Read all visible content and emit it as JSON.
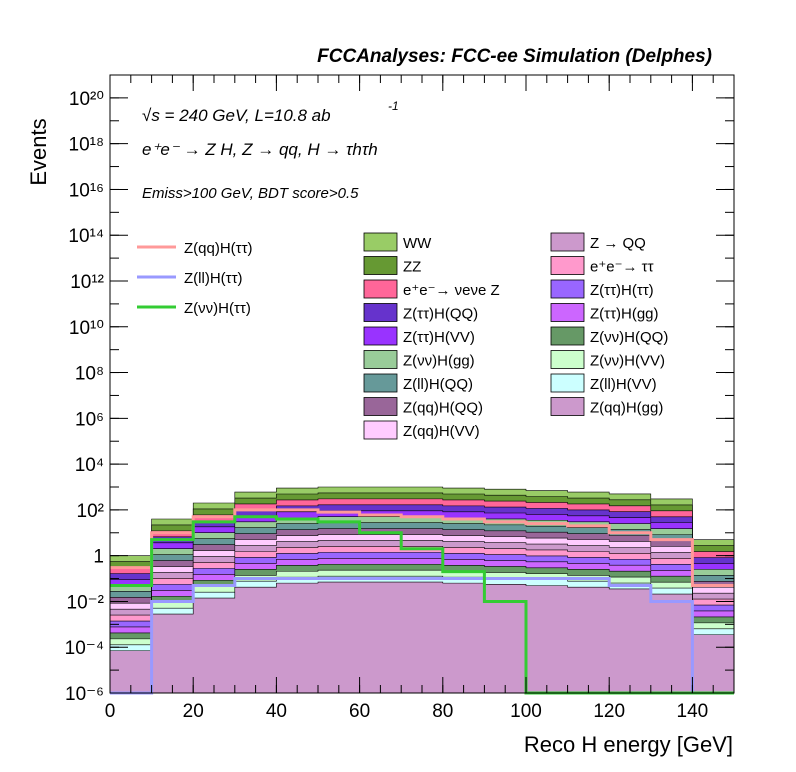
{
  "header": "FCCAnalyses: FCC-ee Simulation (Delphes)",
  "annotations": {
    "line1": "√s = 240 GeV, L=10.8 ab",
    "line1_sup": "-1",
    "line2": "e⁺e⁻ → Z H, Z → qq, H → τhτh",
    "line3": "Emiss>100 GeV, BDT score>0.5"
  },
  "chart_data": {
    "type": "area",
    "xlabel": "Reco H energy [GeV]",
    "ylabel": "Events",
    "xlim": [
      0,
      150
    ],
    "ylim": [
      1e-06,
      1e+21
    ],
    "log_y": true,
    "x_ticks": [
      "0",
      "20",
      "40",
      "60",
      "80",
      "100",
      "120",
      "140"
    ],
    "y_ticks": [
      "10⁻⁶",
      "10⁻⁴",
      "10⁻²",
      "1",
      "10²",
      "10⁴",
      "10⁶",
      "10⁸",
      "10¹⁰",
      "10¹²",
      "10¹⁴",
      "10¹⁶",
      "10¹⁸",
      "10²⁰"
    ],
    "grid": false,
    "legend_position": "top",
    "x": [
      5,
      15,
      25,
      35,
      45,
      55,
      65,
      75,
      85,
      95,
      105,
      115,
      125,
      135,
      145
    ],
    "stack_total": [
      1,
      40,
      200,
      600,
      900,
      1000,
      1000,
      1000,
      900,
      800,
      700,
      600,
      500,
      300,
      5
    ],
    "stack_components": [
      {
        "name": "WW",
        "color": "#99cc66"
      },
      {
        "name": "ZZ",
        "color": "#669933"
      },
      {
        "name": "e⁺e⁻→ νeνe Z",
        "color": "#ff6699"
      },
      {
        "name": "Z(ττ)H(QQ)",
        "color": "#6633cc"
      },
      {
        "name": "Z(ττ)H(VV)",
        "color": "#9933ff"
      },
      {
        "name": "Z(νν)H(gg)",
        "color": "#99cc99"
      },
      {
        "name": "Z(ll)H(QQ)",
        "color": "#669999"
      },
      {
        "name": "Z(qq)H(QQ)",
        "color": "#996699"
      },
      {
        "name": "Z(qq)H(VV)",
        "color": "#ffccff"
      },
      {
        "name": "Z → QQ",
        "color": "#cc99cc"
      },
      {
        "name": "e⁺e⁻→ ττ",
        "color": "#ff99cc"
      },
      {
        "name": "Z(ττ)H(ττ)",
        "color": "#9966ff"
      },
      {
        "name": "Z(ττ)H(gg)",
        "color": "#cc66ff"
      },
      {
        "name": "Z(νν)H(QQ)",
        "color": "#669966"
      },
      {
        "name": "Z(νν)H(VV)",
        "color": "#ccffcc"
      },
      {
        "name": "Z(ll)H(VV)",
        "color": "#ccffff"
      },
      {
        "name": "Z(qq)H(gg)",
        "color": "#cc99cc"
      }
    ],
    "signal_series": [
      {
        "name": "Z(qq)H(ττ)",
        "color": "#ff9999",
        "values": [
          0.3,
          10,
          50,
          100,
          100,
          80,
          60,
          50,
          40,
          30,
          25,
          20,
          10,
          5,
          0.05
        ]
      },
      {
        "name": "Z(ll)H(ττ)",
        "color": "#9999ff",
        "values": [
          1e-06,
          0.01,
          0.05,
          0.1,
          0.1,
          0.1,
          0.1,
          0.1,
          0.1,
          0.1,
          0.1,
          0.1,
          0.05,
          0.01,
          1e-06
        ]
      },
      {
        "name": "Z(νν)H(ττ)",
        "color": "#33cc33",
        "values": [
          0.05,
          5,
          30,
          50,
          40,
          30,
          10,
          2,
          0.2,
          0.01,
          1e-06,
          1e-06,
          1e-06,
          1e-06,
          1e-06
        ]
      }
    ]
  }
}
